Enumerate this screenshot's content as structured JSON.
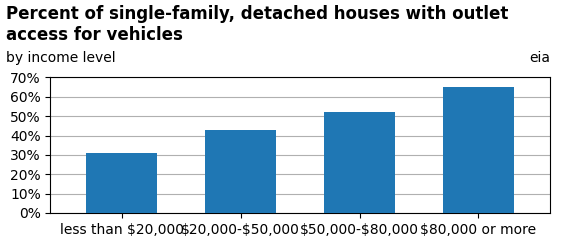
{
  "chart_data": {
    "type": "bar",
    "title": "Percent of single-family, detached houses with outlet access for vehicles",
    "subtitle": "by income level",
    "annotations": [
      "eia"
    ],
    "categories": [
      "less than $20,000",
      "$20,000-$50,000",
      "$50,000-$80,000",
      "$80,000 or more"
    ],
    "values": [
      31,
      43,
      52,
      65
    ],
    "ylim": [
      0,
      70
    ],
    "yticks": [
      {
        "value": 0,
        "label": "0%"
      },
      {
        "value": 10,
        "label": "10%"
      },
      {
        "value": 20,
        "label": "20%"
      },
      {
        "value": 30,
        "label": "30%"
      },
      {
        "value": 40,
        "label": "40%"
      },
      {
        "value": 50,
        "label": "50%"
      },
      {
        "value": 60,
        "label": "60%"
      },
      {
        "value": 70,
        "label": "70%"
      }
    ],
    "grid": true
  }
}
